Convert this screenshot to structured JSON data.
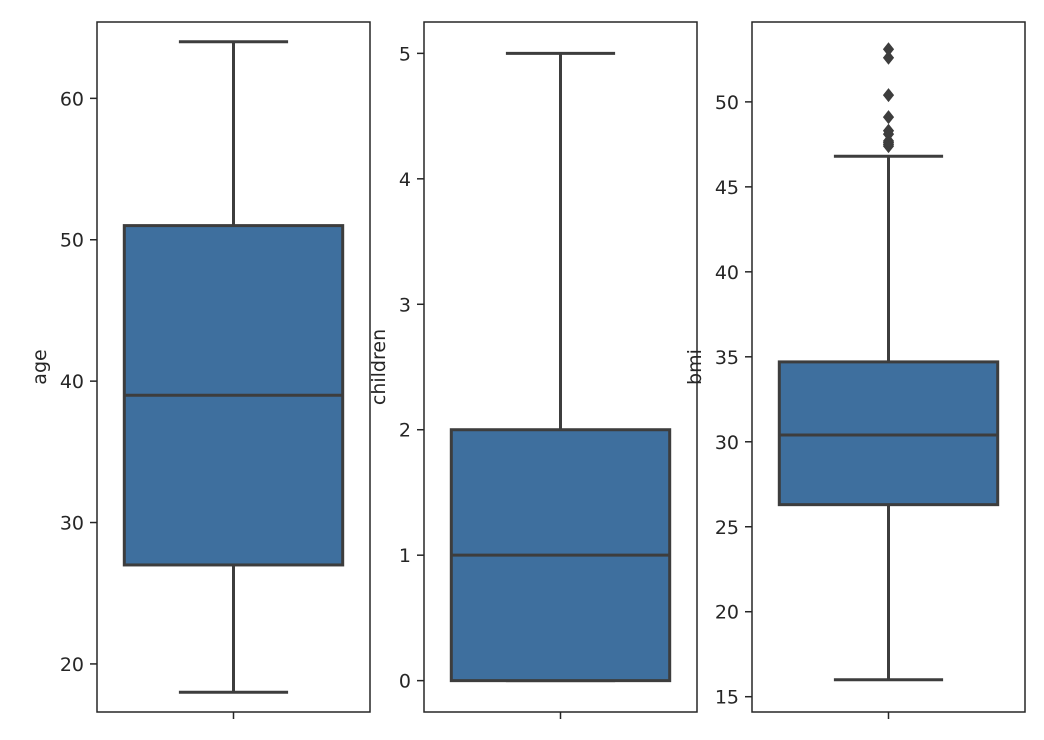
{
  "colors": {
    "box_fill": "#3e6f9e",
    "line": "#3d3d3d",
    "spine": "#262626",
    "background": "#ffffff"
  },
  "chart_data": [
    {
      "type": "box",
      "title": "",
      "xlabel": "",
      "ylabel": "age",
      "ylim": [
        16.6,
        65.4
      ],
      "yticks": [
        20,
        30,
        40,
        50,
        60
      ],
      "stats": {
        "min": 18,
        "q1": 27,
        "median": 39,
        "q3": 51,
        "max": 64
      },
      "outliers": []
    },
    {
      "type": "box",
      "title": "",
      "xlabel": "",
      "ylabel": "children",
      "ylim": [
        -0.25,
        5.25
      ],
      "yticks": [
        0,
        1,
        2,
        3,
        4,
        5
      ],
      "stats": {
        "min": 0,
        "q1": 0,
        "median": 1,
        "q3": 2,
        "max": 5
      },
      "outliers": []
    },
    {
      "type": "box",
      "title": "",
      "xlabel": "",
      "ylabel": "bmi",
      "ylim": [
        14.1,
        54.7
      ],
      "yticks": [
        15,
        20,
        25,
        30,
        35,
        40,
        45,
        50
      ],
      "stats": {
        "min": 16.0,
        "q1": 26.3,
        "median": 30.4,
        "q3": 34.7,
        "max": 46.8
      },
      "outliers": [
        47.4,
        47.5,
        47.6,
        47.7,
        48.1,
        48.3,
        49.1,
        50.4,
        52.6,
        53.1
      ]
    }
  ]
}
